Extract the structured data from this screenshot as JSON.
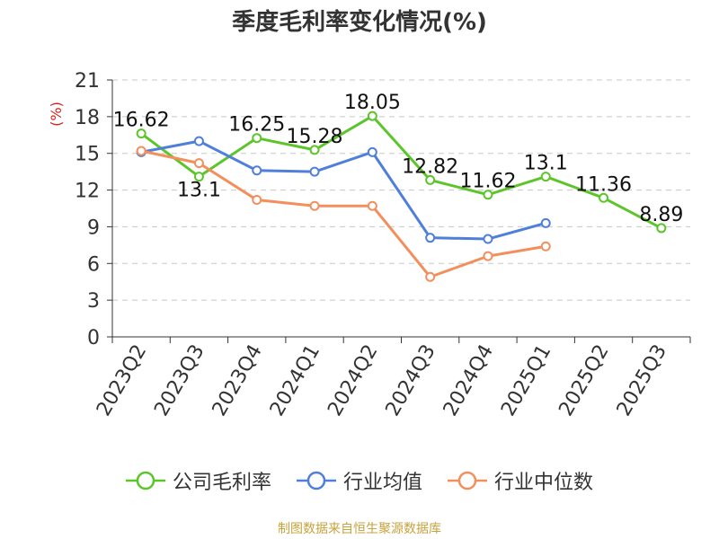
{
  "chart_data": {
    "type": "line",
    "title": "季度毛利率变化情况(%)",
    "ylabel": "(%)",
    "xlabel": "",
    "categories": [
      "2023Q2",
      "2023Q3",
      "2023Q4",
      "2024Q1",
      "2024Q2",
      "2024Q3",
      "2024Q4",
      "2025Q1",
      "2025Q2",
      "2025Q3"
    ],
    "ylim": [
      0,
      21
    ],
    "yticks": [
      0,
      3,
      6,
      9,
      12,
      15,
      18,
      21
    ],
    "grid": true,
    "legend_position": "bottom",
    "series": [
      {
        "name": "公司毛利率",
        "color": "#5cc52a",
        "values": [
          16.62,
          13.1,
          16.25,
          15.28,
          18.05,
          12.82,
          11.62,
          13.1,
          11.36,
          8.89
        ],
        "labels": [
          "16.62",
          "13.1",
          "16.25",
          "15.28",
          "18.05",
          "12.82",
          "11.62",
          "13.1",
          "11.36",
          "8.89"
        ]
      },
      {
        "name": "行业均值",
        "color": "#4f7fdb",
        "values": [
          15.1,
          16.0,
          13.6,
          13.5,
          15.1,
          8.1,
          8.0,
          9.3,
          null,
          null
        ]
      },
      {
        "name": "行业中位数",
        "color": "#f38f5c",
        "values": [
          15.2,
          14.2,
          11.2,
          10.7,
          10.7,
          4.9,
          6.6,
          7.4,
          null,
          null
        ]
      }
    ]
  },
  "footer": {
    "source": "制图数据来自恒生聚源数据库"
  }
}
